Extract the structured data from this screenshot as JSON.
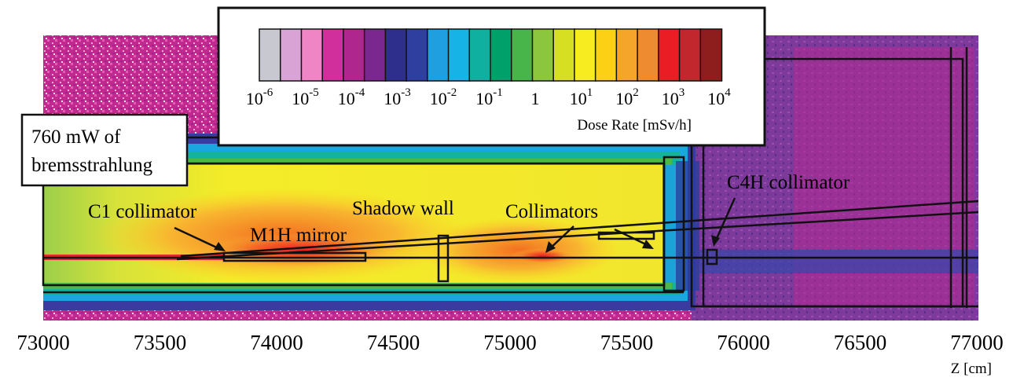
{
  "figure": {
    "legend": {
      "title": "Dose Rate [mSv/h]",
      "tick_labels": [
        {
          "base": "10",
          "exp": "-6"
        },
        {
          "base": "10",
          "exp": "-5"
        },
        {
          "base": "10",
          "exp": "-4"
        },
        {
          "base": "10",
          "exp": "-3"
        },
        {
          "base": "10",
          "exp": "-2"
        },
        {
          "base": "10",
          "exp": "-1"
        },
        {
          "base": "1",
          "exp": ""
        },
        {
          "base": "10",
          "exp": "1"
        },
        {
          "base": "10",
          "exp": "2"
        },
        {
          "base": "10",
          "exp": "3"
        },
        {
          "base": "10",
          "exp": "4"
        }
      ],
      "colors": [
        "#c8c8d0",
        "#d9a3d6",
        "#ef85c4",
        "#d12f9b",
        "#b0268f",
        "#7a2790",
        "#2e2f8d",
        "#2f3fa0",
        "#1f9fe0",
        "#15b3e6",
        "#10b0a0",
        "#00a06a",
        "#47b54a",
        "#8cc63f",
        "#d7df23",
        "#f7ec1f",
        "#fbd015",
        "#f4a52a",
        "#ee8a30",
        "#ea1c24",
        "#c1272d",
        "#8e1d1d"
      ]
    },
    "annotations": {
      "power_box_line1": "760 mW of",
      "power_box_line2": "bremsstrahlung",
      "c1": "C1 collimator",
      "m1h": "M1H mirror",
      "shadow": "Shadow wall",
      "collimators": "Collimators",
      "c4h": "C4H collimator"
    },
    "x_axis": {
      "label": "Z [cm]",
      "ticks": [
        "73000",
        "73500",
        "74000",
        "74500",
        "75000",
        "75500",
        "76000",
        "76500",
        "77000"
      ]
    }
  }
}
